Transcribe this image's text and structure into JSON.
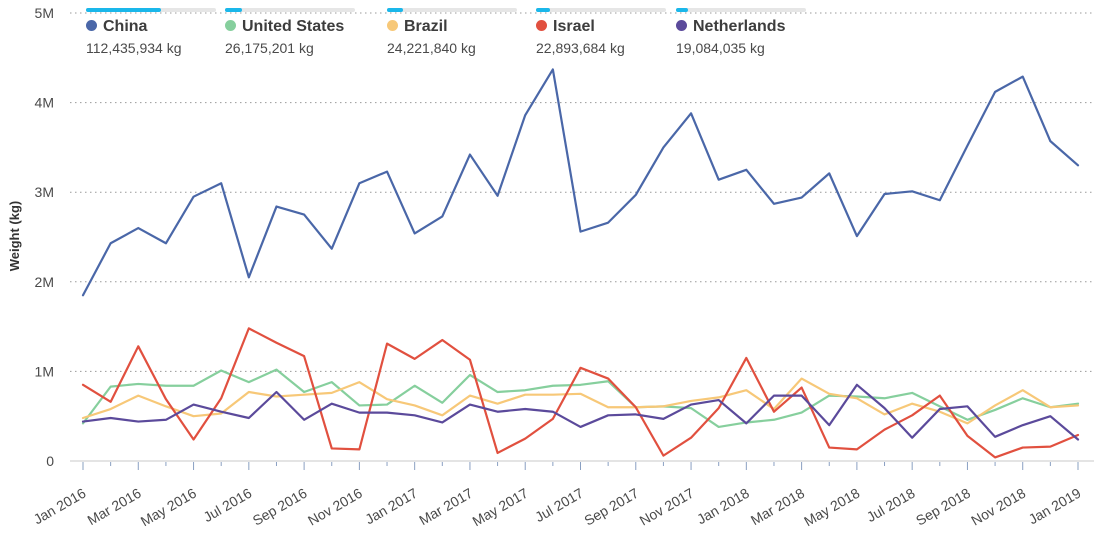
{
  "chart_data": {
    "type": "line",
    "title": "",
    "xlabel": "",
    "ylabel": "Weight (kg)",
    "ylim": [
      0,
      5000000
    ],
    "y_ticks": [
      {
        "value": 0,
        "label": "0"
      },
      {
        "value": 1000000,
        "label": "1M"
      },
      {
        "value": 2000000,
        "label": "2M"
      },
      {
        "value": 3000000,
        "label": "3M"
      },
      {
        "value": 4000000,
        "label": "4M"
      },
      {
        "value": 5000000,
        "label": "5M"
      }
    ],
    "x": [
      "Jan 2016",
      "Feb 2016",
      "Mar 2016",
      "Apr 2016",
      "May 2016",
      "Jun 2016",
      "Jul 2016",
      "Aug 2016",
      "Sep 2016",
      "Oct 2016",
      "Nov 2016",
      "Dec 2016",
      "Jan 2017",
      "Feb 2017",
      "Mar 2017",
      "Apr 2017",
      "May 2017",
      "Jun 2017",
      "Jul 2017",
      "Aug 2017",
      "Sep 2017",
      "Oct 2017",
      "Nov 2017",
      "Dec 2017",
      "Jan 2018",
      "Feb 2018",
      "Mar 2018",
      "Apr 2018",
      "May 2018",
      "Jun 2018",
      "Jul 2018",
      "Aug 2018",
      "Sep 2018",
      "Oct 2018",
      "Nov 2018",
      "Dec 2018",
      "Jan 2019"
    ],
    "x_tick_labels": [
      "Jan 2016",
      "Mar 2016",
      "May 2016",
      "Jul 2016",
      "Sep 2016",
      "Nov 2016",
      "Jan 2017",
      "Mar 2017",
      "May 2017",
      "Jul 2017",
      "Sep 2017",
      "Nov 2017",
      "Jan 2018",
      "Mar 2018",
      "May 2018",
      "Jul 2018",
      "Sep 2018",
      "Nov 2018",
      "Jan 2019"
    ],
    "series": [
      {
        "name": "China",
        "total": "112,435,934 kg",
        "color": "#4a67a8",
        "legend_fill": 0.58,
        "values": [
          1850000,
          2430000,
          2600000,
          2430000,
          2950000,
          3100000,
          2050000,
          2840000,
          2750000,
          2370000,
          3100000,
          3230000,
          2540000,
          2730000,
          3420000,
          2960000,
          3860000,
          4370000,
          2560000,
          2660000,
          2970000,
          3500000,
          3880000,
          3140000,
          3250000,
          2870000,
          2940000,
          3210000,
          2510000,
          2980000,
          3010000,
          2910000,
          3520000,
          4120000,
          4290000,
          3570000,
          3300000
        ]
      },
      {
        "name": "United States",
        "total": "26,175,201 kg",
        "color": "#86cf9d",
        "legend_fill": 0.13,
        "values": [
          420000,
          830000,
          860000,
          840000,
          840000,
          1010000,
          880000,
          1020000,
          770000,
          880000,
          620000,
          630000,
          840000,
          650000,
          960000,
          770000,
          790000,
          840000,
          850000,
          890000,
          600000,
          610000,
          590000,
          380000,
          430000,
          460000,
          540000,
          730000,
          720000,
          700000,
          760000,
          610000,
          460000,
          570000,
          700000,
          600000,
          640000
        ]
      },
      {
        "name": "Brazil",
        "total": "24,221,840 kg",
        "color": "#f7c878",
        "legend_fill": 0.12,
        "values": [
          480000,
          580000,
          730000,
          610000,
          500000,
          530000,
          770000,
          720000,
          740000,
          760000,
          880000,
          690000,
          620000,
          510000,
          730000,
          640000,
          740000,
          740000,
          750000,
          600000,
          600000,
          610000,
          670000,
          710000,
          790000,
          580000,
          920000,
          750000,
          700000,
          520000,
          640000,
          550000,
          420000,
          620000,
          790000,
          600000,
          620000
        ]
      },
      {
        "name": "Israel",
        "total": "22,893,684 kg",
        "color": "#e1503f",
        "legend_fill": 0.11,
        "values": [
          850000,
          660000,
          1280000,
          690000,
          240000,
          700000,
          1480000,
          1320000,
          1170000,
          140000,
          130000,
          1310000,
          1140000,
          1350000,
          1130000,
          90000,
          250000,
          470000,
          1040000,
          920000,
          600000,
          60000,
          260000,
          590000,
          1150000,
          550000,
          820000,
          150000,
          130000,
          350000,
          510000,
          730000,
          280000,
          40000,
          150000,
          160000,
          290000
        ]
      },
      {
        "name": "Netherlands",
        "total": "19,084,035 kg",
        "color": "#5b4a9b",
        "legend_fill": 0.09,
        "values": [
          440000,
          480000,
          440000,
          460000,
          630000,
          550000,
          480000,
          770000,
          460000,
          640000,
          540000,
          540000,
          510000,
          430000,
          630000,
          550000,
          580000,
          550000,
          380000,
          510000,
          520000,
          470000,
          630000,
          680000,
          420000,
          730000,
          730000,
          400000,
          850000,
          590000,
          260000,
          580000,
          610000,
          270000,
          400000,
          500000,
          240000
        ]
      }
    ]
  }
}
